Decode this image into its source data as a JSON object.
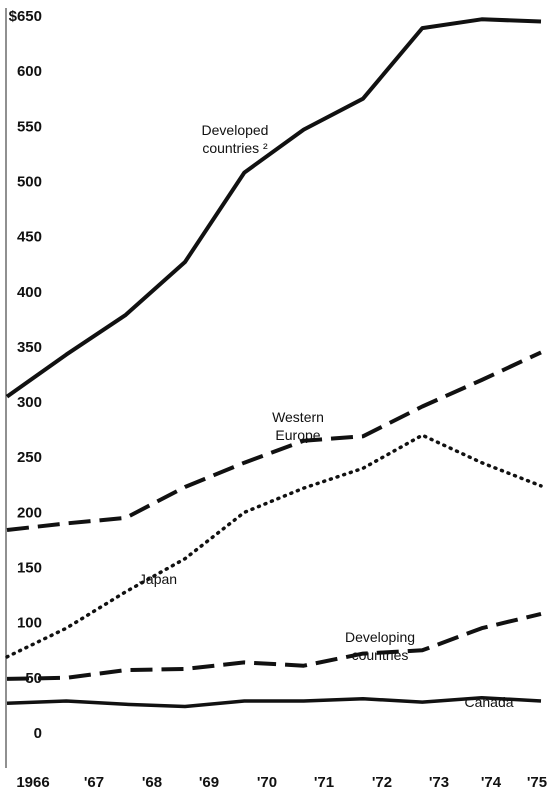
{
  "chart_data": {
    "type": "line",
    "title": "",
    "xlabel": "",
    "ylabel": "",
    "x": [
      "1966",
      "'67",
      "'68",
      "'69",
      "'70",
      "'71",
      "'72",
      "'73",
      "'74",
      "'75"
    ],
    "ylim": [
      0,
      650
    ],
    "yticks": [
      "0",
      "50",
      "100",
      "150",
      "200",
      "250",
      "300",
      "350",
      "400",
      "450",
      "500",
      "550",
      "600",
      "$650"
    ],
    "ytick_values": [
      0,
      50,
      100,
      150,
      200,
      250,
      300,
      350,
      400,
      450,
      500,
      550,
      600,
      650
    ],
    "grid": false,
    "legend": "none",
    "series": [
      {
        "name": "Developed countries ²",
        "label_lines": [
          "Developed",
          "countries ²"
        ],
        "style": "solid",
        "values": [
          305,
          343,
          379,
          427,
          508,
          547,
          575,
          639,
          647,
          645
        ]
      },
      {
        "name": "Western Europe",
        "label_lines": [
          "Western",
          "Europe"
        ],
        "style": "dashed",
        "values": [
          184,
          190,
          195,
          223,
          245,
          265,
          269,
          296,
          320,
          345
        ]
      },
      {
        "name": "Japan",
        "label_lines": [
          "Japan"
        ],
        "style": "dotted",
        "values": [
          69,
          95,
          128,
          158,
          200,
          222,
          240,
          270,
          245,
          224
        ]
      },
      {
        "name": "Developing countries",
        "label_lines": [
          "Developing",
          "countries"
        ],
        "style": "dashed",
        "values": [
          49,
          50,
          57,
          58,
          64,
          61,
          72,
          75,
          95,
          108
        ]
      },
      {
        "name": "Canada",
        "label_lines": [
          "Canada"
        ],
        "style": "solid-thin",
        "values": [
          27,
          29,
          26,
          24,
          29,
          29,
          31,
          28,
          32,
          29
        ]
      }
    ]
  }
}
